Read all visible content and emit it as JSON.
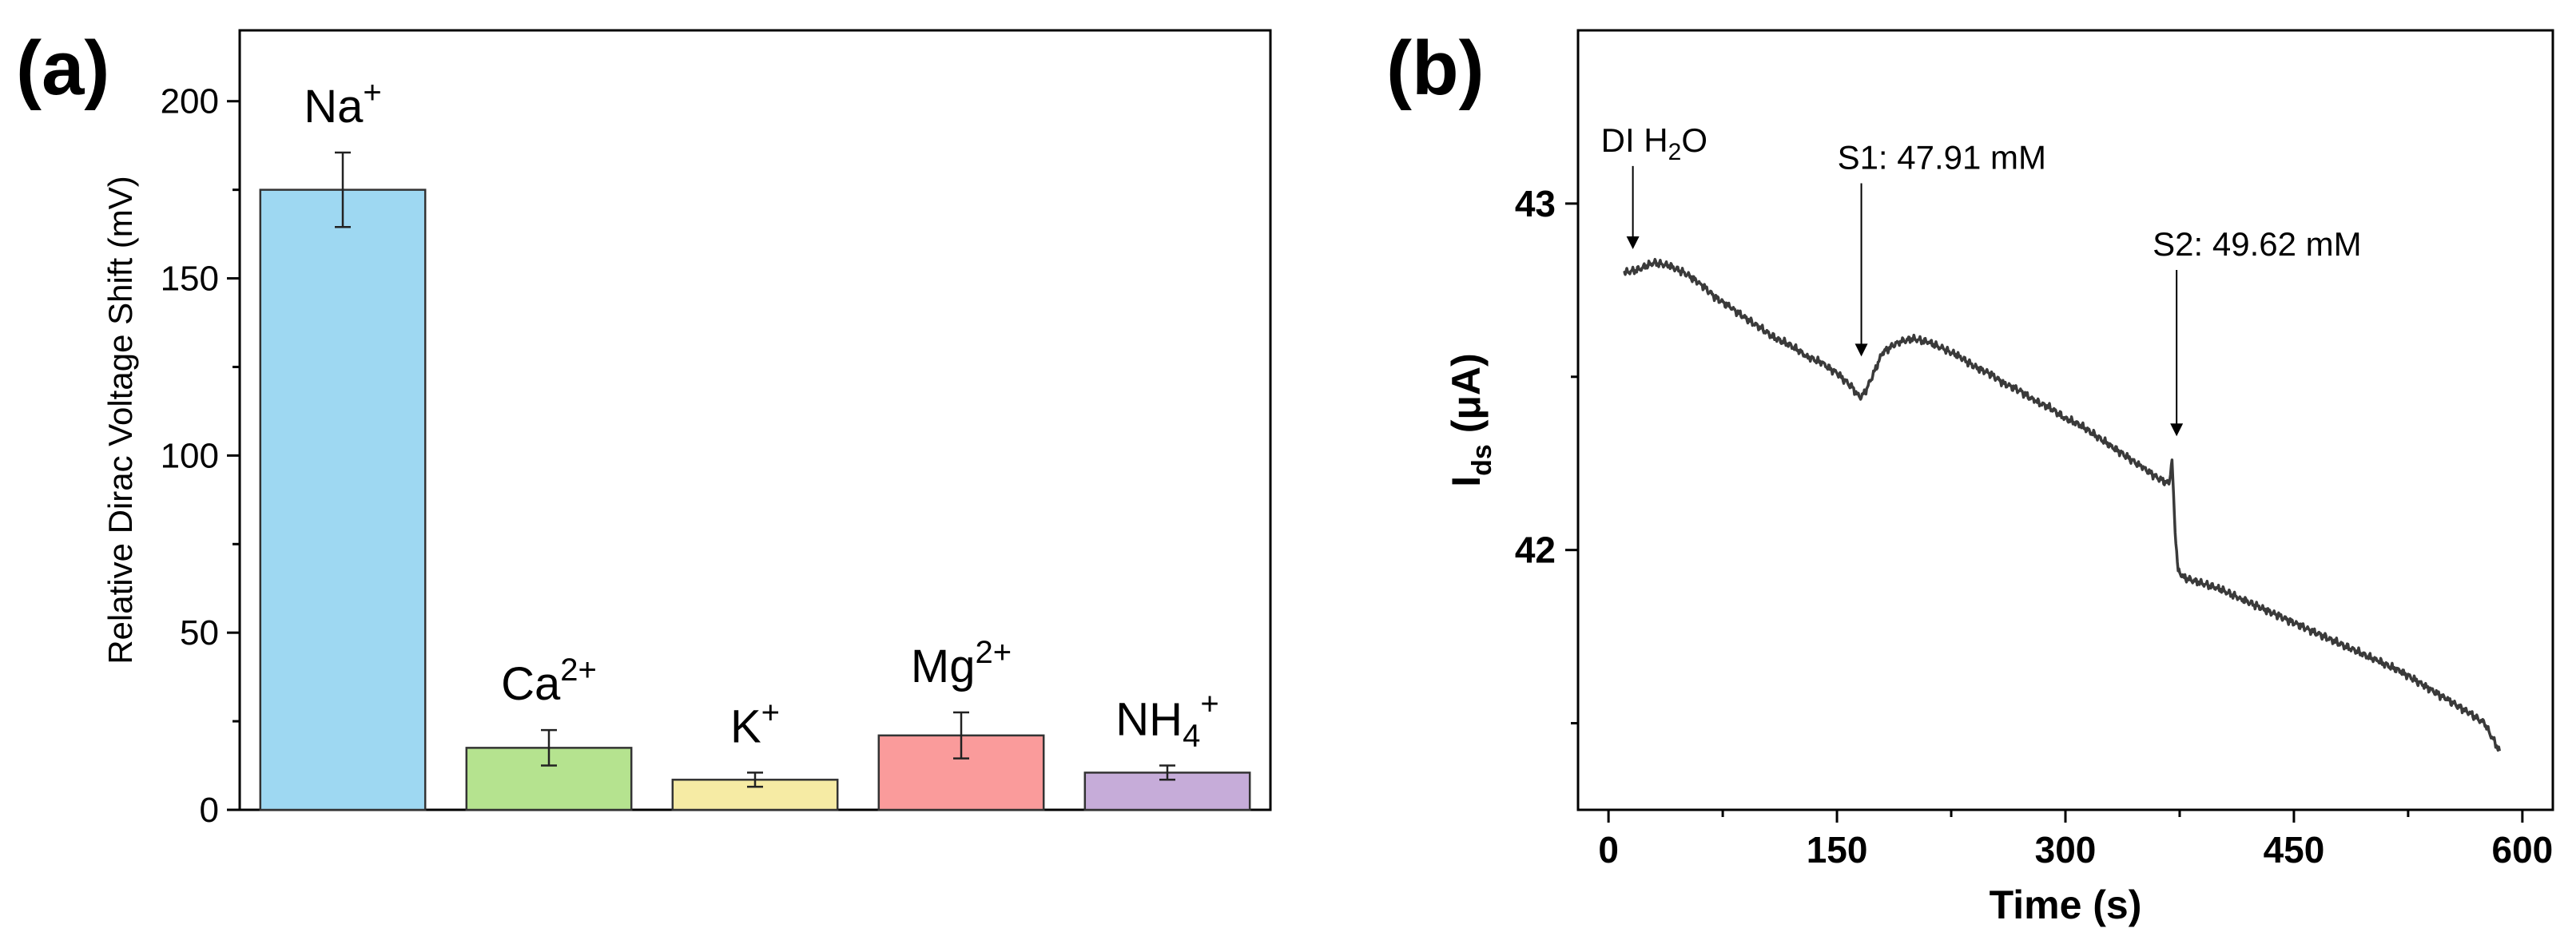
{
  "chart_data": [
    {
      "panel": "(a)",
      "type": "bar",
      "ylabel": "Relative Dirac Voltage Shift (mV)",
      "xlabel": "",
      "ylim": [
        0,
        220
      ],
      "yticks": [
        0,
        50,
        100,
        150,
        200
      ],
      "categories": [
        {
          "base": "Na",
          "sub": "",
          "sup": "+"
        },
        {
          "base": "Ca",
          "sub": "",
          "sup": "2+"
        },
        {
          "base": "K",
          "sub": "",
          "sup": "+"
        },
        {
          "base": "Mg",
          "sub": "",
          "sup": "2+"
        },
        {
          "base": "NH",
          "sub": "4",
          "sup": "+"
        }
      ],
      "values": [
        175,
        17.5,
        8.5,
        21,
        10.5
      ],
      "errors": [
        10.5,
        5,
        2,
        6.5,
        2
      ],
      "colors": [
        "#9ed8f2",
        "#b5e38f",
        "#f6eba4",
        "#fa9b9b",
        "#c6acd9"
      ]
    },
    {
      "panel": "(b)",
      "type": "line",
      "xlabel": "Time (s)",
      "ylabel": {
        "base": "I",
        "sub": "ds",
        "unit": " (μA)"
      },
      "xlim": [
        -20,
        620
      ],
      "ylim": [
        41.25,
        43.5
      ],
      "xticks": [
        0,
        150,
        300,
        450,
        600
      ],
      "yticks": [
        42,
        43
      ],
      "series": [
        {
          "name": "Ids",
          "x": [
            10,
            20,
            30,
            40,
            50,
            60,
            70,
            80,
            90,
            100,
            110,
            120,
            130,
            140,
            150,
            160,
            163,
            166,
            170,
            175,
            180,
            190,
            200,
            210,
            220,
            230,
            240,
            250,
            260,
            270,
            280,
            290,
            300,
            310,
            320,
            330,
            340,
            350,
            360,
            368,
            370,
            372,
            374,
            378,
            385,
            400,
            415,
            430,
            445,
            460,
            475,
            490,
            505,
            520,
            535,
            550,
            565,
            575,
            580,
            585
          ],
          "y": [
            42.8,
            42.81,
            42.83,
            42.82,
            42.8,
            42.77,
            42.73,
            42.7,
            42.67,
            42.64,
            42.61,
            42.59,
            42.56,
            42.54,
            42.51,
            42.47,
            42.45,
            42.44,
            42.47,
            42.52,
            42.57,
            42.6,
            42.61,
            42.6,
            42.58,
            42.56,
            42.53,
            42.51,
            42.48,
            42.46,
            42.43,
            42.41,
            42.38,
            42.36,
            42.33,
            42.3,
            42.27,
            42.24,
            42.21,
            42.19,
            42.26,
            42.05,
            41.94,
            41.92,
            41.91,
            41.89,
            41.86,
            41.83,
            41.8,
            41.77,
            41.74,
            41.71,
            41.68,
            41.65,
            41.61,
            41.57,
            41.53,
            41.5,
            41.46,
            41.42
          ]
        }
      ],
      "annotations": [
        {
          "label_base": "DI H",
          "label_sub": "2",
          "label_tail": "O",
          "x": 16,
          "y": 42.85,
          "text_y": 43.15
        },
        {
          "label_base": "S1: 47.91 mM",
          "label_sub": "",
          "label_tail": "",
          "x": 166,
          "y": 42.54,
          "text_y": 43.1
        },
        {
          "label_base": "S2: 49.62 mM",
          "label_sub": "",
          "label_tail": "",
          "x": 373,
          "y": 42.31,
          "text_y": 42.85
        }
      ]
    }
  ]
}
